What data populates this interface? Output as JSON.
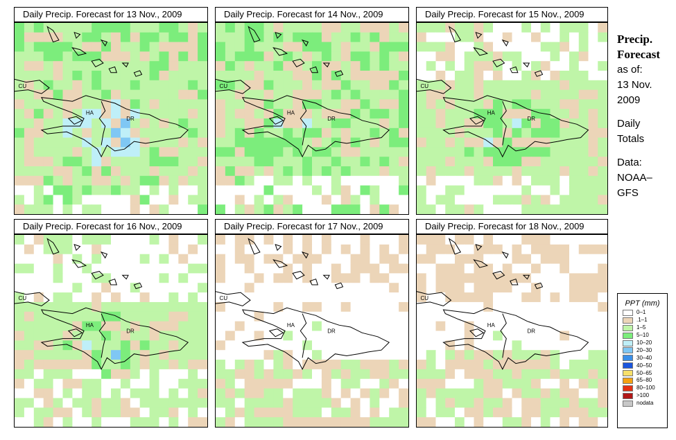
{
  "panels": [
    {
      "title": "Daily Precip. Forecast for  13 Nov., 2009",
      "map_labels": {
        "cuba": "CU",
        "haiti": "HA",
        "dominican_republic": "DR"
      }
    },
    {
      "title": "Daily Precip. Forecast for  14 Nov., 2009",
      "map_labels": {
        "cuba": "CU",
        "haiti": "HA",
        "dominican_republic": "DR"
      }
    },
    {
      "title": "Daily Precip. Forecast for  15 Nov., 2009",
      "map_labels": {
        "cuba": "CU",
        "haiti": "HA",
        "dominican_republic": "DR"
      }
    },
    {
      "title": "Daily Precip. Forecast for  16 Nov., 2009",
      "map_labels": {
        "cuba": "CU",
        "haiti": "HA",
        "dominican_republic": "DR"
      }
    },
    {
      "title": "Daily Precip. Forecast for  17 Nov., 2009",
      "map_labels": {
        "cuba": "CU",
        "haiti": "HA",
        "dominican_republic": "DR"
      }
    },
    {
      "title": "Daily Precip. Forecast for  18 Nov., 2009",
      "map_labels": {
        "cuba": "CU",
        "haiti": "HA",
        "dominican_republic": "DR"
      }
    }
  ],
  "info": {
    "title_line1": "Precip.",
    "title_line2": "Forecast",
    "asof_label": "as of:",
    "date_line1": "13 Nov.",
    "date_line2": "2009",
    "totals_line1": "Daily",
    "totals_line2": "Totals",
    "source_line1": "Data:",
    "source_line2": "NOAA–",
    "source_line3": "GFS"
  },
  "legend": {
    "title": "PPT (mm)",
    "items": [
      {
        "label": "0–1",
        "color": "#ffffff"
      },
      {
        "label": ".1–1",
        "color": "#ecd5b8"
      },
      {
        "label": "1–5",
        "color": "#bff5a8"
      },
      {
        "label": "5–10",
        "color": "#7ced7c"
      },
      {
        "label": "10–20",
        "color": "#bfeff8"
      },
      {
        "label": "20–30",
        "color": "#7fc7f4"
      },
      {
        "label": "30–40",
        "color": "#3a8fe8"
      },
      {
        "label": "40–50",
        "color": "#1a55dd"
      },
      {
        "label": "50–65",
        "color": "#f7e06a"
      },
      {
        "label": "65–80",
        "color": "#f5a212"
      },
      {
        "label": "80–100",
        "color": "#e53112"
      },
      {
        "label": ">100",
        "color": "#b01818"
      },
      {
        "label": "nodata",
        "color": "#c8c8c8"
      }
    ]
  }
}
